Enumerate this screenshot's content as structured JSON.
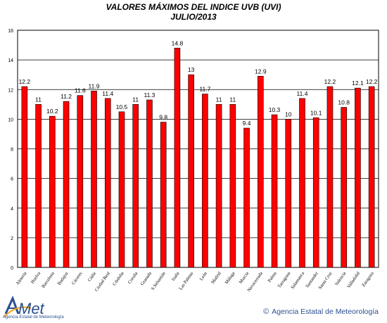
{
  "chart_data": {
    "type": "bar",
    "title": "VALORES MÁXIMOS DEL INDICE UVB (UVI)",
    "subtitle": "JULIO/2013",
    "categories": [
      "Almería",
      "Huelva",
      "Barcelona",
      "Badajoz",
      "Cáceres",
      "Cádiz",
      "Ciudad Real",
      "Córdoba",
      "Coruña",
      "Granada",
      "S.Sebastián",
      "Izaña",
      "Las Palmas",
      "León",
      "Madrid",
      "Málaga",
      "Murcia",
      "Navacerrada",
      "Palma",
      "Tarragona",
      "Salamanca",
      "Santander",
      "Santa Cruz",
      "Valencia",
      "Valladolid",
      "Zaragoza"
    ],
    "values": [
      12.2,
      11,
      10.2,
      11.2,
      11.6,
      11.9,
      11.4,
      10.5,
      11,
      11.3,
      9.8,
      14.8,
      13,
      11.7,
      11,
      11,
      9.4,
      12.9,
      10.3,
      10,
      11.4,
      10.1,
      12.2,
      10.8,
      12.1,
      12.2
    ],
    "value_labels": [
      "12.2",
      "11",
      "10.2",
      "11.2",
      "11.6",
      "11.9",
      "11.4",
      "10.5",
      "11",
      "11.3",
      "9.8",
      "14.8",
      "13",
      "11.7",
      "11",
      "11",
      "9.4",
      "12.9",
      "10.3",
      "10",
      "11.4",
      "10.1",
      "12.2",
      "10.8",
      "12.1",
      "12.2"
    ],
    "ylim": [
      0,
      16
    ],
    "yticks": [
      0,
      2,
      4,
      6,
      8,
      10,
      12,
      14,
      16
    ],
    "grid": true,
    "bar_color": "#ff0000",
    "bar_edge_color": "#000000"
  },
  "logo": {
    "text": "AEMet",
    "caption": "Agencia Estatal de Meteorología"
  },
  "credit": {
    "symbol": "©",
    "text": "Agencia Estatal de Meteorología"
  }
}
